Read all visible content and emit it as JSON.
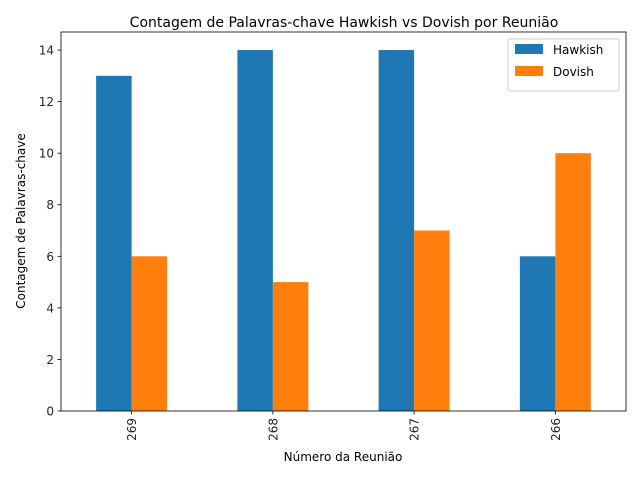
{
  "chart_data": {
    "type": "bar",
    "title": "Contagem de Palavras-chave Hawkish vs Dovish por Reunião",
    "xlabel": "Número da Reunião",
    "ylabel": "Contagem de Palavras-chave",
    "categories": [
      "269",
      "268",
      "267",
      "266"
    ],
    "series": [
      {
        "name": "Hawkish",
        "values": [
          13,
          14,
          14,
          6
        ],
        "color": "#1f77b4"
      },
      {
        "name": "Dovish",
        "values": [
          6,
          5,
          7,
          10
        ],
        "color": "#ff7f0e"
      }
    ],
    "ylim": [
      0,
      14.7
    ],
    "yticks": [
      "0",
      "2",
      "4",
      "6",
      "8",
      "10",
      "12",
      "14"
    ],
    "grid": false,
    "legend_position": "top-right",
    "x_tick_rotation": "vertical"
  }
}
